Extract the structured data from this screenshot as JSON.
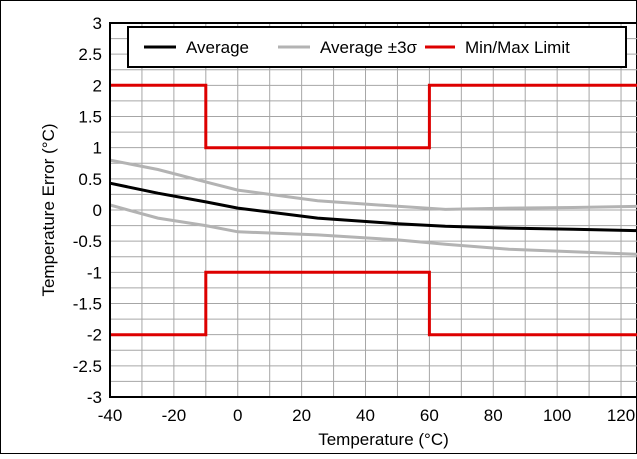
{
  "chart_data": {
    "type": "line",
    "xlabel": "Temperature (°C)",
    "ylabel": "Temperature Error (°C)",
    "xlim": [
      -40,
      125
    ],
    "ylim": [
      -3,
      3
    ],
    "x_ticks": [
      -40,
      -20,
      0,
      20,
      40,
      60,
      80,
      100,
      120
    ],
    "y_ticks": [
      3,
      2.5,
      2,
      1.5,
      1,
      0.5,
      0,
      -0.5,
      -1,
      -1.5,
      -2,
      -2.5,
      -3
    ],
    "x_tick_labels": [
      "-40",
      "-20",
      "0",
      "20",
      "40",
      "60",
      "80",
      "100",
      "120"
    ],
    "y_tick_labels": [
      "3",
      "2.5",
      "2",
      "1.5",
      "1",
      "0.5",
      "0",
      "-0.5",
      "-1",
      "-1.5",
      "-2",
      "-2.5",
      "-3"
    ],
    "grid": true,
    "legend_position": "top",
    "legend": [
      {
        "label": "Average",
        "color": "#000000"
      },
      {
        "label": "Average ±3σ",
        "color": "#b3b3b3"
      },
      {
        "label": "Min/Max Limit",
        "color": "#dd0000"
      }
    ],
    "series": [
      {
        "name": "Average",
        "color": "#000000",
        "x": [
          -40,
          -25,
          -10,
          0,
          25,
          50,
          65,
          85,
          105,
          125
        ],
        "y": [
          0.43,
          0.27,
          0.13,
          0.03,
          -0.13,
          -0.22,
          -0.26,
          -0.29,
          -0.31,
          -0.33
        ]
      },
      {
        "name": "Average +3σ",
        "color": "#b3b3b3",
        "x": [
          -40,
          -25,
          -10,
          0,
          25,
          50,
          65,
          85,
          105,
          125
        ],
        "y": [
          0.8,
          0.65,
          0.45,
          0.32,
          0.15,
          0.06,
          0.01,
          0.03,
          0.04,
          0.06
        ]
      },
      {
        "name": "Average -3σ",
        "color": "#b3b3b3",
        "x": [
          -40,
          -25,
          -10,
          0,
          25,
          50,
          65,
          85,
          105,
          125
        ],
        "y": [
          0.08,
          -0.13,
          -0.25,
          -0.35,
          -0.4,
          -0.48,
          -0.55,
          -0.63,
          -0.67,
          -0.71
        ]
      },
      {
        "name": "Max Limit",
        "color": "#dd0000",
        "x": [
          -40,
          -10,
          -10,
          60,
          60,
          125
        ],
        "y": [
          2,
          2,
          1,
          1,
          2,
          2
        ]
      },
      {
        "name": "Min Limit",
        "color": "#dd0000",
        "x": [
          -40,
          -10,
          -10,
          60,
          60,
          125
        ],
        "y": [
          -2,
          -2,
          -1,
          -1,
          -2,
          -2
        ]
      }
    ]
  }
}
